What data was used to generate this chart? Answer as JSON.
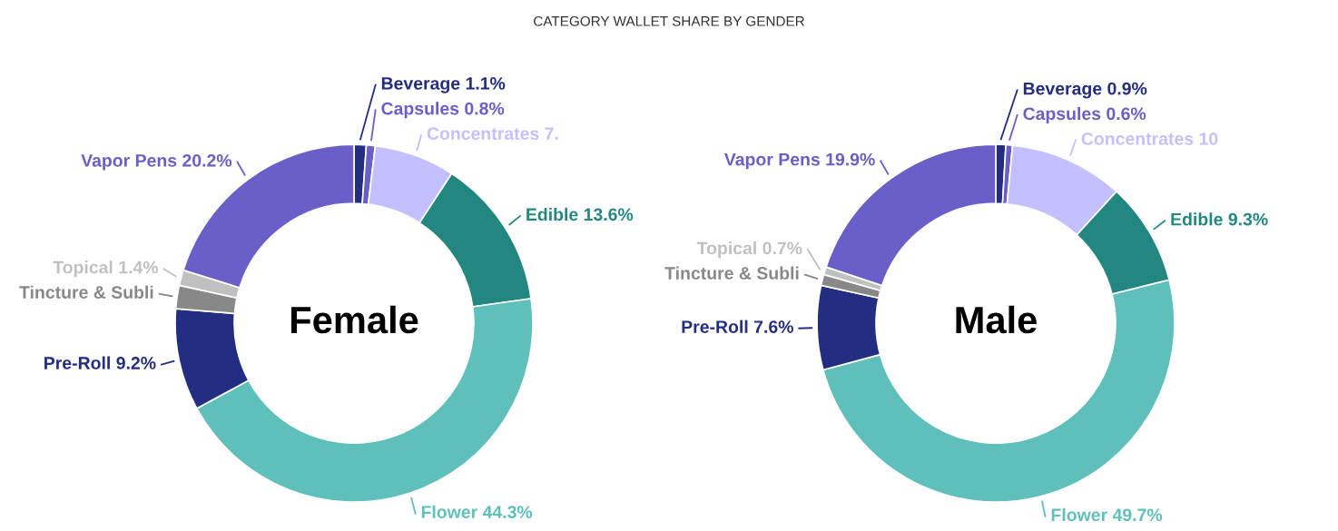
{
  "chart_data": [
    {
      "type": "donut",
      "title": "CATEGORY WALLET SHARE BY GENDER",
      "annotations": [
        "Female"
      ],
      "categories": [
        "Beverage",
        "Capsules",
        "Concentrates",
        "Edible",
        "Flower",
        "Pre-Roll",
        "Tincture & Subli",
        "Topical",
        "Vapor Pens"
      ],
      "values": [
        1.1,
        0.8,
        7.3,
        13.6,
        44.3,
        9.2,
        2.1,
        1.4,
        20.2
      ],
      "value_labels": [
        "1.1%",
        "0.8%",
        "7.",
        "13.6%",
        "44.3%",
        "9.2%",
        null,
        "1.4%",
        "20.2%"
      ],
      "colors": [
        "#232d82",
        "#6a5fc8",
        "#c4c0ff",
        "#238781",
        "#5fc0bb",
        "#232d82",
        "#888888",
        "#c0c0c0",
        "#6a5fc8"
      ]
    },
    {
      "type": "donut",
      "annotations": [
        "Male"
      ],
      "categories": [
        "Beverage",
        "Capsules",
        "Concentrates",
        "Edible",
        "Flower",
        "Pre-Roll",
        "Tincture & Subli",
        "Topical",
        "Vapor Pens"
      ],
      "values": [
        0.9,
        0.6,
        10.3,
        9.3,
        49.7,
        7.6,
        1.0,
        0.7,
        19.9
      ],
      "value_labels": [
        "0.9%",
        "0.6%",
        "10",
        "9.3%",
        "49.7%",
        "7.6%",
        null,
        "0.7%",
        "19.9%"
      ],
      "colors": [
        "#232d82",
        "#6a5fc8",
        "#c4c0ff",
        "#238781",
        "#5fc0bb",
        "#232d82",
        "#888888",
        "#c0c0c0",
        "#6a5fc8"
      ]
    }
  ]
}
